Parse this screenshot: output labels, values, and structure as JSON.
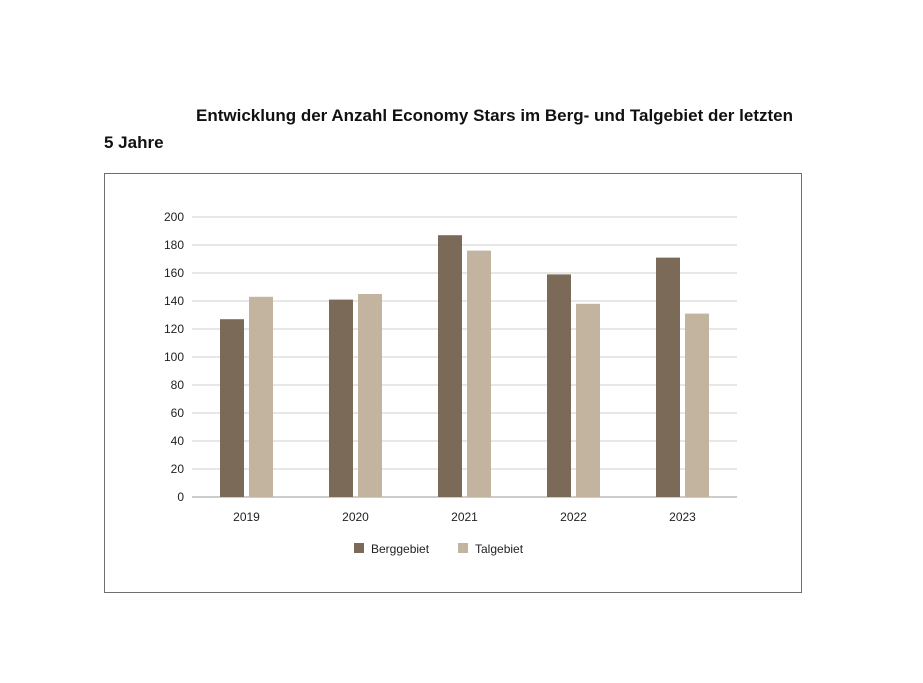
{
  "chart_data": {
    "type": "bar",
    "title": "Entwicklung der Anzahl Economy Stars im Berg- und Talgebiet der letzten 5 Jahre",
    "categories": [
      "2019",
      "2020",
      "2021",
      "2022",
      "2023"
    ],
    "series": [
      {
        "name": "Berggebiet",
        "values": [
          127,
          141,
          187,
          159,
          171
        ],
        "color": "#7b6a58"
      },
      {
        "name": "Talgebiet",
        "values": [
          143,
          145,
          176,
          138,
          131
        ],
        "color": "#c2b49e"
      }
    ],
    "xlabel": "",
    "ylabel": "",
    "ylim": [
      0,
      200
    ],
    "yticks": [
      "0",
      "20",
      "40",
      "60",
      "80",
      "100",
      "120",
      "140",
      "160",
      "180",
      "200"
    ],
    "grid": true,
    "legend_position": "bottom"
  }
}
